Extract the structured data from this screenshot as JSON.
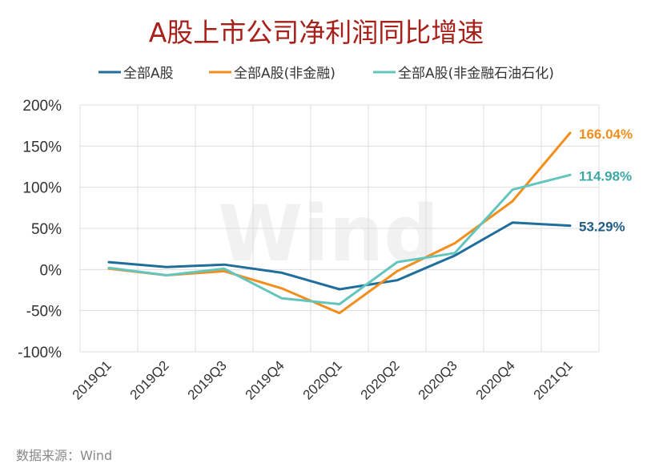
{
  "chart_data": {
    "type": "line",
    "title": "A股上市公司净利润同比增速",
    "categories": [
      "2019Q1",
      "2019Q2",
      "2019Q3",
      "2019Q4",
      "2020Q1",
      "2020Q2",
      "2020Q3",
      "2020Q4",
      "2021Q1"
    ],
    "ylim": [
      -100,
      200
    ],
    "yticks": [
      "200%",
      "150%",
      "100%",
      "50%",
      "0%",
      "-50%",
      "-100%"
    ],
    "ytick_values": [
      200,
      150,
      100,
      50,
      0,
      -50,
      -100
    ],
    "grid": true,
    "legend_position": "top",
    "series": [
      {
        "name": "全部A股",
        "color": "#1f6e9c",
        "values": [
          9,
          3,
          6,
          -4,
          -24,
          -13,
          17,
          57,
          53.29
        ],
        "end_label": "53.29%"
      },
      {
        "name": "全部A股(非金融)",
        "color": "#f28e1e",
        "values": [
          1,
          -7,
          -2,
          -23,
          -53,
          -2,
          32,
          83,
          166.04
        ],
        "end_label": "166.04%"
      },
      {
        "name": "全部A股(非金融石油石化)",
        "color": "#63c5be",
        "values": [
          2,
          -7,
          1,
          -35,
          -42,
          9,
          20,
          97,
          114.98
        ],
        "end_label": "114.98%"
      }
    ],
    "end_label_colors": [
      "#1f5d85",
      "#f28e1e",
      "#3fa8a4"
    ]
  },
  "source": "数据来源：Wind",
  "watermark": "Wind"
}
